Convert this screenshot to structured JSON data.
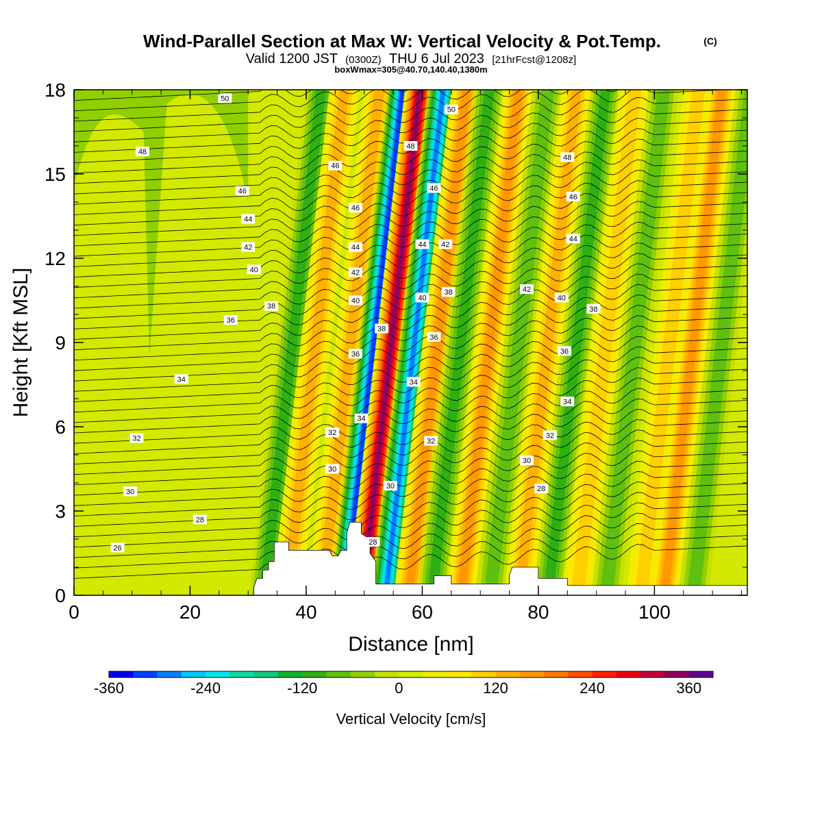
{
  "header": {
    "title": "Wind-Parallel Section at Max W: Vertical Velocity & Pot.Temp.",
    "copyright": "(C)",
    "valid_prefix": "Valid 1200 JST",
    "valid_utc": "(0300Z)",
    "valid_date": "THU 6 Jul 2023",
    "forecast": "[21hrFcst@1208z]",
    "box_info": "boxWmax=305@40.70,140.40,1380m"
  },
  "chart_data": {
    "type": "heatmap",
    "xlabel": "Distance [nm]",
    "ylabel": "Height [Kft MSL]",
    "xlim": [
      0,
      116
    ],
    "ylim": [
      0,
      18
    ],
    "x_ticks": [
      "0",
      "20",
      "40",
      "60",
      "80",
      "100"
    ],
    "y_ticks": [
      "0",
      "3",
      "6",
      "9",
      "12",
      "15",
      "18"
    ],
    "colorbar": {
      "label": "Vertical Velocity [cm/s]",
      "ticks": [
        "-360",
        "-240",
        "-120",
        "0",
        "120",
        "240",
        "360"
      ],
      "levels": [
        -360,
        -330,
        -300,
        -270,
        -240,
        -210,
        -180,
        -150,
        -120,
        -90,
        -60,
        -30,
        0,
        30,
        60,
        90,
        120,
        150,
        180,
        210,
        240,
        270,
        300,
        330,
        360,
        390
      ],
      "colors": [
        "#0000ee",
        "#0040ff",
        "#0080ff",
        "#00c8ff",
        "#00e8f0",
        "#10d8a0",
        "#10c878",
        "#10b030",
        "#30b010",
        "#60c010",
        "#90d000",
        "#c8e000",
        "#d8ec00",
        "#eeee00",
        "#ffe800",
        "#ffd000",
        "#ffb000",
        "#ff9800",
        "#ff7800",
        "#ff5000",
        "#ff2000",
        "#ee0010",
        "#c00040",
        "#900060",
        "#600090"
      ]
    },
    "shading_bands": [
      {
        "x": 36,
        "w_kt": 60,
        "peak": -120
      },
      {
        "x": 40,
        "w_kt": 60,
        "peak": 120
      },
      {
        "x": 46,
        "w_kt": 60,
        "peak": 140
      },
      {
        "x": 50,
        "w_kt": 60,
        "peak": -340
      },
      {
        "x": 53,
        "w_kt": 60,
        "peak": 330
      },
      {
        "x": 57,
        "w_kt": 60,
        "peak": -300
      },
      {
        "x": 61,
        "w_kt": 60,
        "peak": 150
      },
      {
        "x": 65,
        "w_kt": 60,
        "peak": -120
      },
      {
        "x": 70,
        "w_kt": 60,
        "peak": 150
      },
      {
        "x": 75,
        "w_kt": 60,
        "peak": -110
      },
      {
        "x": 80,
        "w_kt": 60,
        "peak": 130
      },
      {
        "x": 85,
        "w_kt": 60,
        "peak": -120
      },
      {
        "x": 90,
        "w_kt": 60,
        "peak": 110
      },
      {
        "x": 95,
        "w_kt": 60,
        "peak": -100
      },
      {
        "x": 101,
        "w_kt": 60,
        "peak": 100
      },
      {
        "x": 105,
        "w_kt": 60,
        "peak": 150
      },
      {
        "x": 110,
        "w_kt": 60,
        "peak": -90
      }
    ],
    "contour_labels": [
      {
        "text": "50",
        "x": 26,
        "y": 17.7
      },
      {
        "text": "48",
        "x": 11.8,
        "y": 15.8
      },
      {
        "text": "46",
        "x": 29,
        "y": 14.4
      },
      {
        "text": "44",
        "x": 30,
        "y": 13.4
      },
      {
        "text": "42",
        "x": 30,
        "y": 12.4
      },
      {
        "text": "40",
        "x": 31,
        "y": 11.6
      },
      {
        "text": "38",
        "x": 34,
        "y": 10.3
      },
      {
        "text": "36",
        "x": 27,
        "y": 9.8
      },
      {
        "text": "34",
        "x": 18.5,
        "y": 7.7
      },
      {
        "text": "32",
        "x": 10.8,
        "y": 5.6
      },
      {
        "text": "30",
        "x": 9.7,
        "y": 3.7
      },
      {
        "text": "28",
        "x": 21.7,
        "y": 2.7
      },
      {
        "text": "26",
        "x": 7.5,
        "y": 1.7
      },
      {
        "text": "46",
        "x": 45,
        "y": 15.3
      },
      {
        "text": "46",
        "x": 48.5,
        "y": 13.8
      },
      {
        "text": "44",
        "x": 48.5,
        "y": 12.4
      },
      {
        "text": "42",
        "x": 48.5,
        "y": 11.5
      },
      {
        "text": "40",
        "x": 48.5,
        "y": 10.5
      },
      {
        "text": "38",
        "x": 53,
        "y": 9.5
      },
      {
        "text": "36",
        "x": 48.5,
        "y": 8.6
      },
      {
        "text": "34",
        "x": 49.5,
        "y": 6.3
      },
      {
        "text": "32",
        "x": 44.5,
        "y": 5.8
      },
      {
        "text": "30",
        "x": 44.5,
        "y": 4.5
      },
      {
        "text": "30",
        "x": 54.5,
        "y": 3.9
      },
      {
        "text": "28",
        "x": 51.5,
        "y": 1.9
      },
      {
        "text": "50",
        "x": 65,
        "y": 17.3
      },
      {
        "text": "48",
        "x": 58,
        "y": 16.0
      },
      {
        "text": "46",
        "x": 62,
        "y": 14.5
      },
      {
        "text": "44",
        "x": 60,
        "y": 12.5
      },
      {
        "text": "42",
        "x": 64,
        "y": 12.5
      },
      {
        "text": "40",
        "x": 60,
        "y": 10.6
      },
      {
        "text": "38",
        "x": 64.5,
        "y": 10.8
      },
      {
        "text": "36",
        "x": 62,
        "y": 9.2
      },
      {
        "text": "34",
        "x": 58.5,
        "y": 7.6
      },
      {
        "text": "32",
        "x": 61.5,
        "y": 5.5
      },
      {
        "text": "48",
        "x": 85,
        "y": 15.6
      },
      {
        "text": "46",
        "x": 86,
        "y": 14.2
      },
      {
        "text": "44",
        "x": 86,
        "y": 12.7
      },
      {
        "text": "42",
        "x": 78,
        "y": 10.9
      },
      {
        "text": "40",
        "x": 84,
        "y": 10.6
      },
      {
        "text": "38",
        "x": 89.5,
        "y": 10.2
      },
      {
        "text": "36",
        "x": 84.5,
        "y": 8.7
      },
      {
        "text": "34",
        "x": 85,
        "y": 6.9
      },
      {
        "text": "32",
        "x": 82,
        "y": 5.7
      },
      {
        "text": "30",
        "x": 78,
        "y": 4.8
      },
      {
        "text": "28",
        "x": 80.5,
        "y": 3.8
      }
    ],
    "terrain_nm_kft": [
      [
        31,
        0.3
      ],
      [
        31.5,
        0.6
      ],
      [
        32.5,
        0.6
      ],
      [
        32.5,
        0.9
      ],
      [
        33.5,
        0.9
      ],
      [
        33.5,
        1.2
      ],
      [
        34.5,
        1.2
      ],
      [
        34.5,
        1.9
      ],
      [
        37,
        1.9
      ],
      [
        37,
        1.6
      ],
      [
        44,
        1.6
      ],
      [
        44.5,
        1.4
      ],
      [
        45.5,
        1.4
      ],
      [
        46,
        1.6
      ],
      [
        47,
        1.6
      ],
      [
        47,
        2.2
      ],
      [
        47.5,
        2.6
      ],
      [
        49.5,
        2.6
      ],
      [
        49.5,
        2.2
      ],
      [
        51,
        2.0
      ],
      [
        51,
        1.5
      ],
      [
        52,
        1.2
      ],
      [
        52,
        0.4
      ],
      [
        62,
        0.4
      ],
      [
        62,
        0.7
      ],
      [
        65,
        0.7
      ],
      [
        65,
        0.4
      ],
      [
        75,
        0.4
      ],
      [
        75,
        0.7
      ],
      [
        75.5,
        1.0
      ],
      [
        80,
        1.0
      ],
      [
        80,
        0.6
      ],
      [
        85,
        0.6
      ],
      [
        85,
        0.35
      ],
      [
        116,
        0.35
      ]
    ],
    "grid": false
  }
}
